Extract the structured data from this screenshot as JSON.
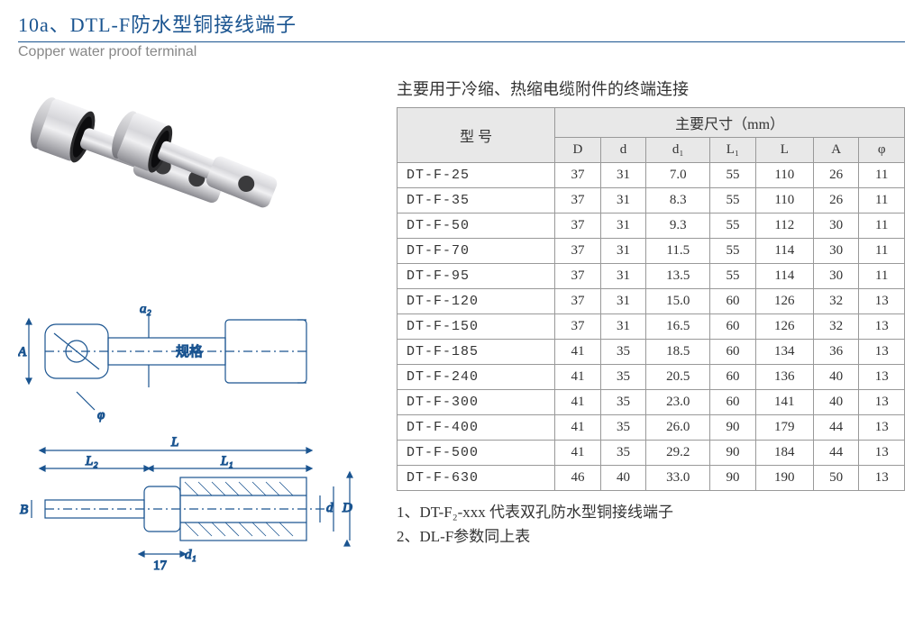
{
  "header": {
    "title_cn": "10a、DTL-F防水型铜接线端子",
    "title_en": "Copper water proof terminal"
  },
  "description": "主要用于冷缩、热缩电缆附件的终端连接",
  "table": {
    "model_label": "型 号",
    "dims_label": "主要尺寸（mm）",
    "columns": [
      "D",
      "d",
      "d₁",
      "L₁",
      "L",
      "A",
      "φ"
    ],
    "rows": [
      {
        "model": "DT-F-25",
        "vals": [
          "37",
          "31",
          "7.0",
          "55",
          "110",
          "26",
          "11"
        ]
      },
      {
        "model": "DT-F-35",
        "vals": [
          "37",
          "31",
          "8.3",
          "55",
          "110",
          "26",
          "11"
        ]
      },
      {
        "model": "DT-F-50",
        "vals": [
          "37",
          "31",
          "9.3",
          "55",
          "112",
          "30",
          "11"
        ]
      },
      {
        "model": "DT-F-70",
        "vals": [
          "37",
          "31",
          "11.5",
          "55",
          "114",
          "30",
          "11"
        ]
      },
      {
        "model": "DT-F-95",
        "vals": [
          "37",
          "31",
          "13.5",
          "55",
          "114",
          "30",
          "11"
        ]
      },
      {
        "model": "DT-F-120",
        "vals": [
          "37",
          "31",
          "15.0",
          "60",
          "126",
          "32",
          "13"
        ]
      },
      {
        "model": "DT-F-150",
        "vals": [
          "37",
          "31",
          "16.5",
          "60",
          "126",
          "32",
          "13"
        ]
      },
      {
        "model": "DT-F-185",
        "vals": [
          "41",
          "35",
          "18.5",
          "60",
          "134",
          "36",
          "13"
        ]
      },
      {
        "model": "DT-F-240",
        "vals": [
          "41",
          "35",
          "20.5",
          "60",
          "136",
          "40",
          "13"
        ]
      },
      {
        "model": "DT-F-300",
        "vals": [
          "41",
          "35",
          "23.0",
          "60",
          "141",
          "40",
          "13"
        ]
      },
      {
        "model": "DT-F-400",
        "vals": [
          "41",
          "35",
          "26.0",
          "90",
          "179",
          "44",
          "13"
        ]
      },
      {
        "model": "DT-F-500",
        "vals": [
          "41",
          "35",
          "29.2",
          "90",
          "184",
          "44",
          "13"
        ]
      },
      {
        "model": "DT-F-630",
        "vals": [
          "46",
          "40",
          "33.0",
          "90",
          "190",
          "50",
          "13"
        ]
      }
    ]
  },
  "notes": {
    "n1": "1、DT-F₂-xxx 代表双孔防水型铜接线端子",
    "n2": "2、DL-F参数同上表"
  },
  "diagram_labels": {
    "A": "A",
    "phi": "φ",
    "d2": "d₂",
    "spec": "规格",
    "L": "L",
    "L1": "L₁",
    "L2": "L₂",
    "B": "B",
    "d1": "d₁",
    "d": "d",
    "D": "D",
    "seventeen": "17"
  },
  "colors": {
    "title": "#1a5490",
    "subtitle": "#888888",
    "table_header_bg": "#e8e8e8",
    "border": "#999999",
    "metal_light": "#f0f0f0",
    "metal_mid": "#c8c8ca",
    "metal_dark": "#808084"
  }
}
